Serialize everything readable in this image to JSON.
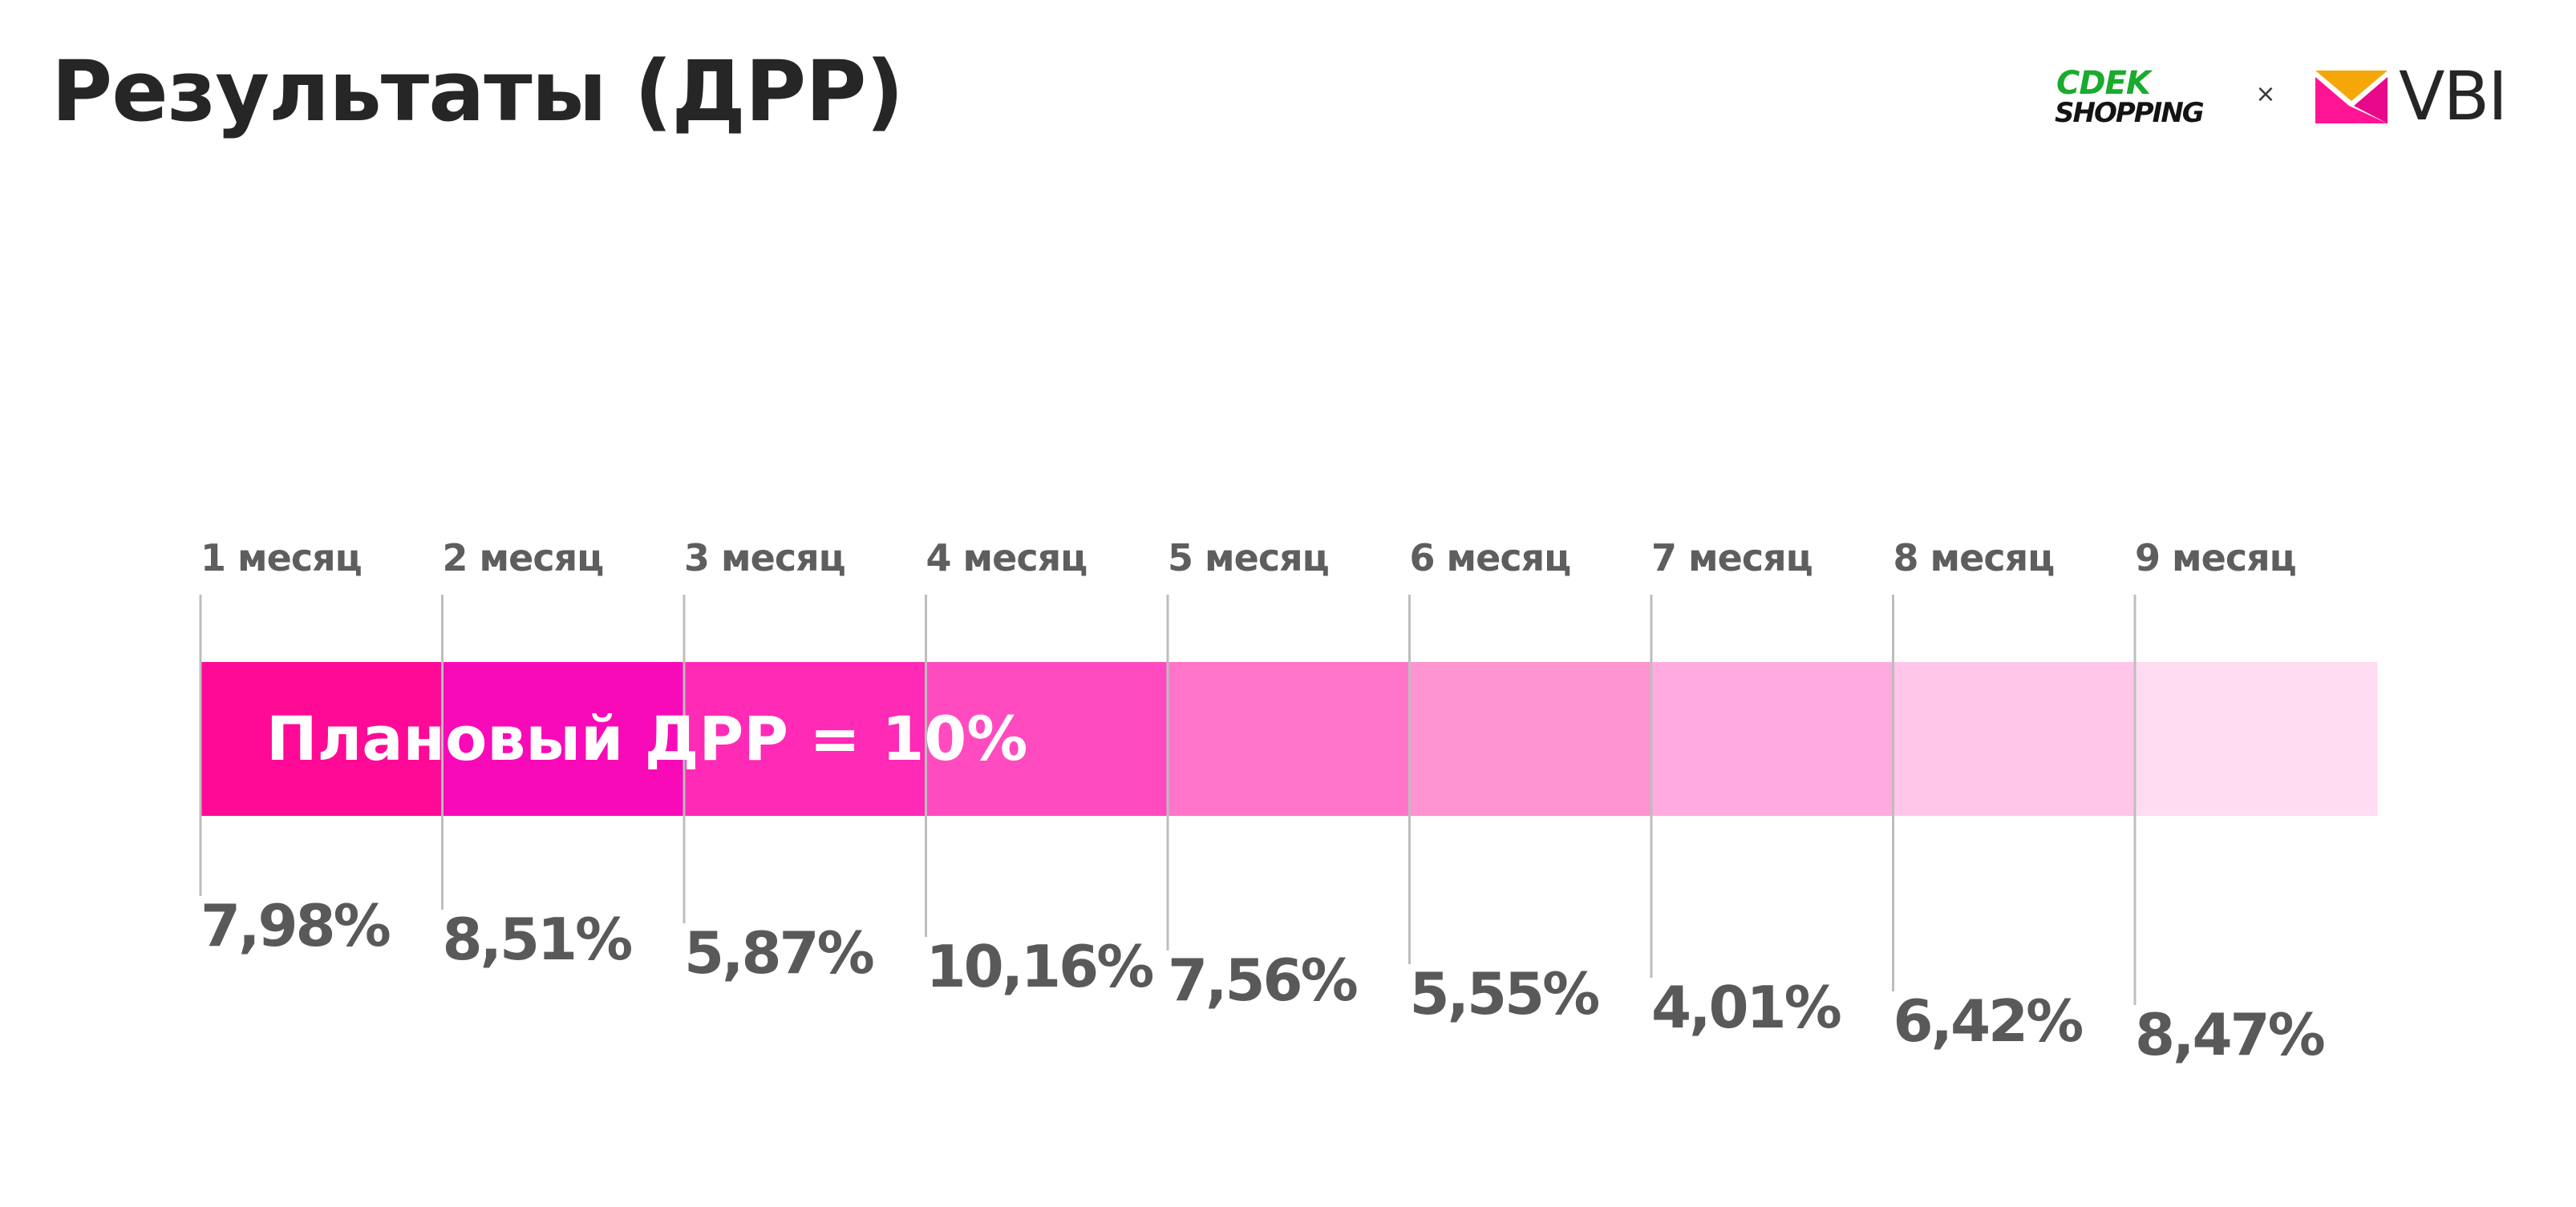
{
  "slide": {
    "title": "Результаты (ДРР)"
  },
  "logos": {
    "left": {
      "top_text": "CDEK",
      "bottom_text": "SHOPPING",
      "color": "#1aab2e"
    },
    "separator": "×",
    "right": {
      "text": "VBI",
      "mark_colors": [
        "#ff1493",
        "#f5a70a",
        "#e8098a"
      ]
    }
  },
  "chart_data": {
    "type": "bar",
    "orientation": "horizontal-timeline",
    "categories": [
      "1 месяц",
      "2 месяц",
      "3 месяц",
      "4 месяц",
      "5 месяц",
      "6 месяц",
      "7 месяц",
      "8 месяц",
      "9 месяц"
    ],
    "values": [
      7.98,
      8.51,
      5.87,
      10.16,
      7.56,
      5.55,
      4.01,
      6.42,
      8.47
    ],
    "value_labels": [
      "7,98%",
      "8,51%",
      "5,87%",
      "10,16%",
      "7,56%",
      "5,55%",
      "4,01%",
      "6,42%",
      "8,47%"
    ],
    "band_label": "Плановый ДРР = 10%",
    "target": 10,
    "segment_colors": [
      "#ff0a96",
      "#f90ab8",
      "#ff2ab6",
      "#ff4bbf",
      "#ff75c9",
      "#ff93d1",
      "#ffabe0",
      "#ffc6e9",
      "#ffdcf1"
    ],
    "colors": {
      "tick_line": "#bdbdbd",
      "month_label": "#5e5e5e",
      "value_label": "#595959",
      "band_text": "#ffffff"
    }
  }
}
